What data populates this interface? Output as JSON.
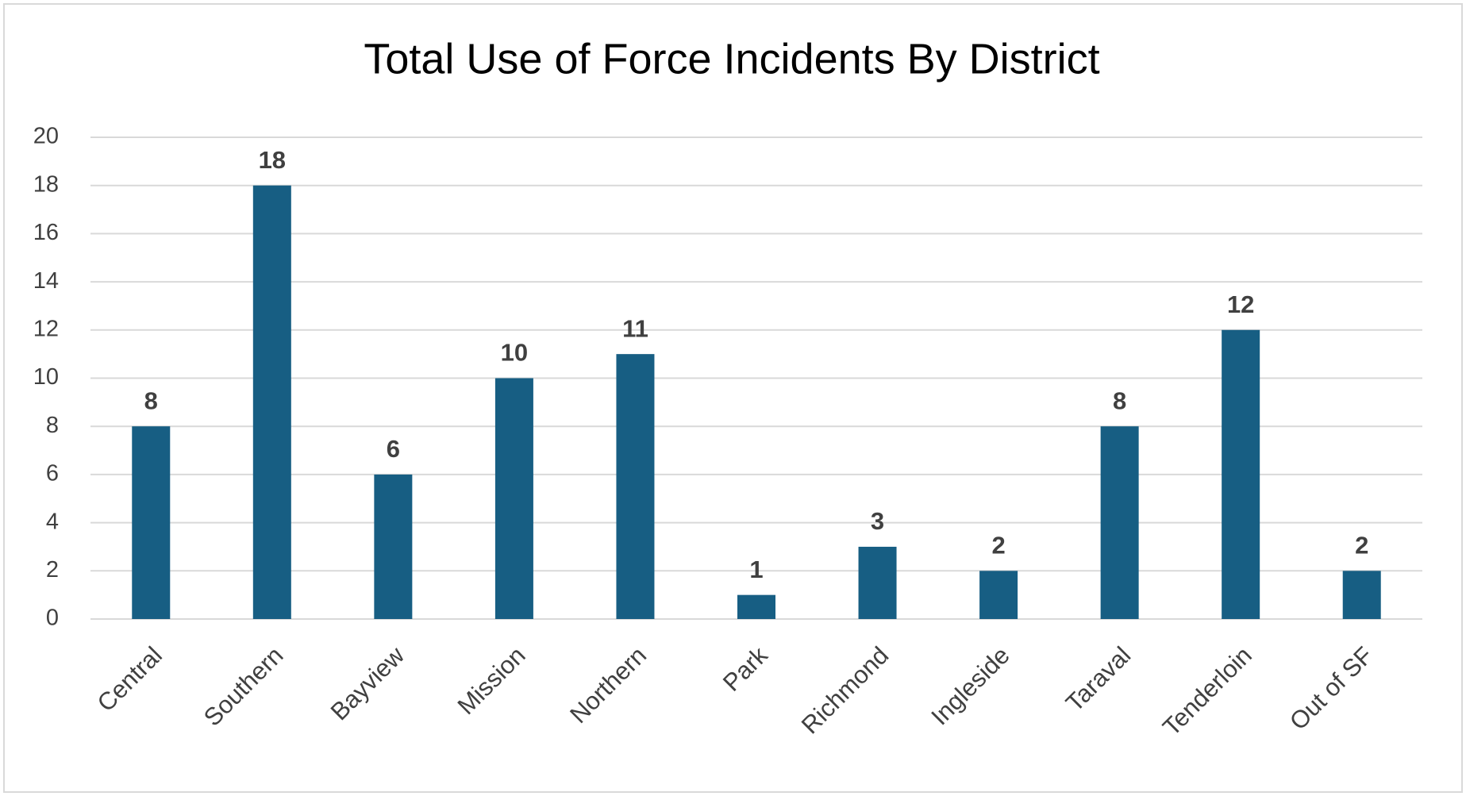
{
  "chart_data": {
    "type": "bar",
    "title": "Total Use of Force Incidents By District",
    "categories": [
      "Central",
      "Southern",
      "Bayview",
      "Mission",
      "Northern",
      "Park",
      "Richmond",
      "Ingleside",
      "Taraval",
      "Tenderloin",
      "Out of SF"
    ],
    "values": [
      8,
      18,
      6,
      10,
      11,
      1,
      3,
      2,
      8,
      12,
      2
    ],
    "color": "#175e83",
    "ylim": [
      0,
      20
    ],
    "yticks": [
      0,
      2,
      4,
      6,
      8,
      10,
      12,
      14,
      16,
      18,
      20
    ],
    "grid": true
  }
}
